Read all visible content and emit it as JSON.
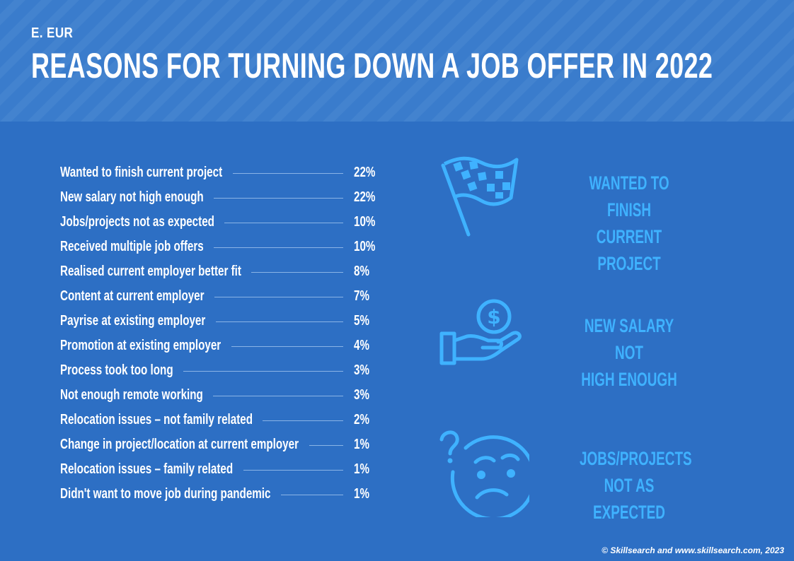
{
  "header": {
    "region": "E. EUR",
    "title": "REASONS FOR TURNING DOWN A JOB OFFER IN 2022"
  },
  "chart_data": {
    "type": "table",
    "title": "REASONS FOR TURNING DOWN A JOB OFFER IN 2022",
    "categories": [
      "Wanted to finish current project",
      "New salary not high enough",
      "Jobs/projects not as expected",
      "Received multiple job offers",
      "Realised current employer better fit",
      "Content at current employer",
      "Payrise at existing employer",
      "Promotion at existing employer",
      "Process took too long",
      "Not enough remote working",
      "Relocation issues – not family related",
      "Change in project/location at current employer",
      "Relocation issues – family related",
      "Didn't want to move job during pandemic"
    ],
    "values": [
      22,
      22,
      10,
      10,
      8,
      7,
      5,
      4,
      3,
      3,
      2,
      1,
      1,
      1
    ],
    "value_labels": [
      "22%",
      "22%",
      "10%",
      "10%",
      "8%",
      "7%",
      "5%",
      "4%",
      "3%",
      "3%",
      "2%",
      "1%",
      "1%",
      "1%"
    ],
    "unit": "%"
  },
  "highlights": [
    {
      "icon": "checkered-flag-icon",
      "line1": "WANTED TO FINISH",
      "line2": "CURRENT PROJECT"
    },
    {
      "icon": "hand-dollar-icon",
      "line1": "NEW SALARY NOT",
      "line2": "HIGH ENOUGH"
    },
    {
      "icon": "confused-face-icon",
      "line1": "JOBS/PROJECTS",
      "line2": "NOT AS EXPECTED"
    }
  ],
  "footer": "© Skillsearch and www.skillsearch.com, 2023",
  "colors": {
    "background": "#2d6fc4",
    "header_band": "#3a7ccc",
    "accent": "#3fb2ff",
    "text": "#ffffff"
  }
}
